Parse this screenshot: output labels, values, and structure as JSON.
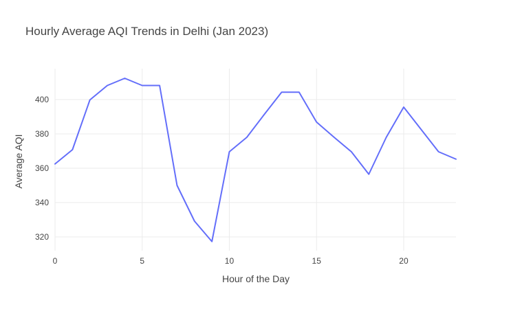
{
  "chart_data": {
    "type": "line",
    "title": "Hourly Average AQI Trends in Delhi (Jan 2023)",
    "xlabel": "Hour of the Day",
    "ylabel": "Average AQI",
    "xlim": [
      0,
      23
    ],
    "ylim": [
      312,
      418
    ],
    "x_ticks": [
      0,
      5,
      10,
      15,
      20
    ],
    "y_ticks": [
      320,
      340,
      360,
      380,
      400
    ],
    "grid": true,
    "legend": "none",
    "series": [
      {
        "color": "#636efa",
        "x": [
          0,
          1,
          2,
          3,
          4,
          5,
          6,
          7,
          8,
          9,
          10,
          11,
          12,
          13,
          14,
          15,
          16,
          17,
          18,
          19,
          20,
          21,
          22,
          23
        ],
        "y": [
          362.5,
          370.8,
          399.8,
          408.2,
          412.4,
          408.2,
          408.2,
          350.0,
          329.2,
          317.3,
          369.6,
          378.0,
          391.3,
          404.3,
          404.3,
          386.9,
          378.1,
          369.6,
          356.5,
          378.0,
          395.6,
          382.6,
          369.6,
          365.3
        ]
      }
    ]
  }
}
